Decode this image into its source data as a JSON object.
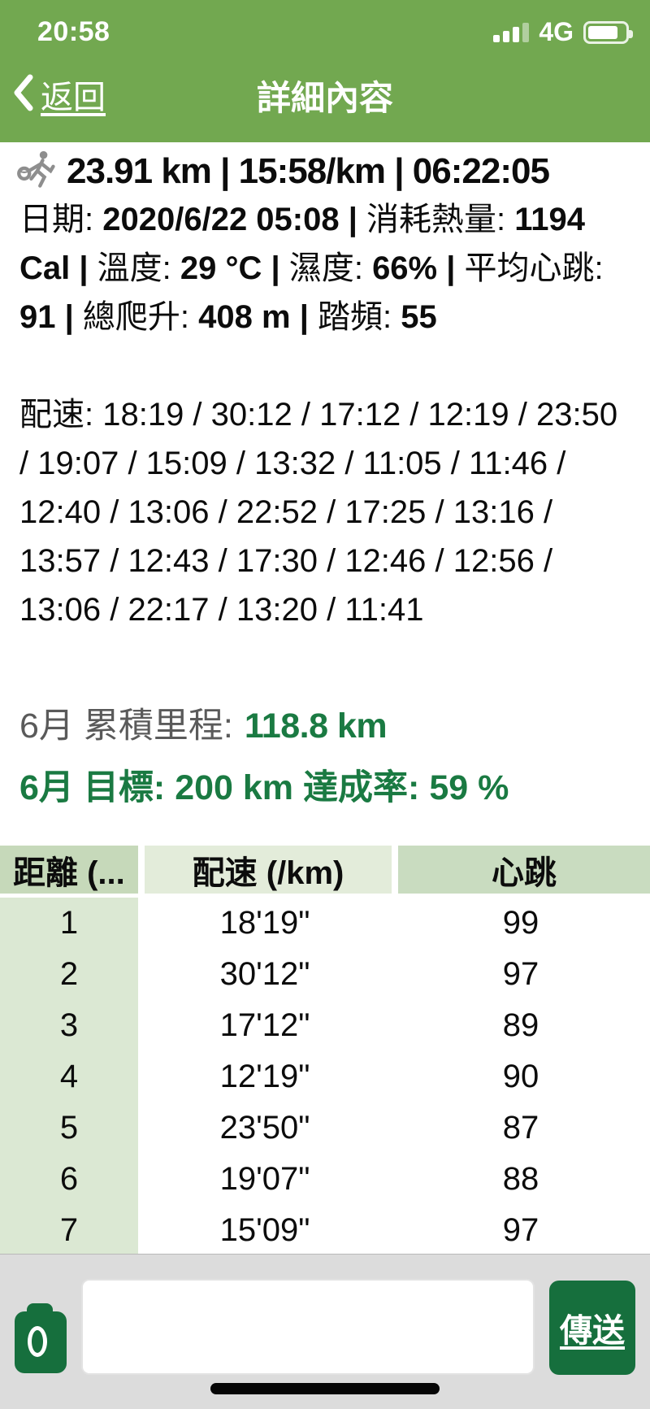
{
  "colors": {
    "header_green": "#72a850",
    "accent_green": "#1a7a42",
    "button_green": "#166f3d",
    "table_col1_body": "#dbe8d3"
  },
  "status_bar": {
    "time": "20:58",
    "network": "4G",
    "signal_icon": "signal-bars-3-of-4",
    "battery_icon": "battery-75"
  },
  "nav": {
    "back_label": "返回",
    "title": "詳細內容"
  },
  "summary": {
    "icon": "runner-icon",
    "text": "23.91 km | 15:58/km | 06:22:05"
  },
  "details": {
    "segments": [
      {
        "text": "日期: ",
        "bold": false
      },
      {
        "text": "2020/6/22 05:08",
        "bold": true
      },
      {
        "text": " | ",
        "bold": true
      },
      {
        "text": "消耗熱量: ",
        "bold": false
      },
      {
        "text": "1194 Cal",
        "bold": true
      },
      {
        "text": " | ",
        "bold": true
      },
      {
        "text": "溫度: ",
        "bold": false
      },
      {
        "text": "29 °C",
        "bold": true
      },
      {
        "text": " | ",
        "bold": true
      },
      {
        "text": "濕度: ",
        "bold": false
      },
      {
        "text": "66%",
        "bold": true
      },
      {
        "text": " | ",
        "bold": true
      },
      {
        "text": "平均心跳: ",
        "bold": false
      },
      {
        "text": "91",
        "bold": true
      },
      {
        "text": " | ",
        "bold": true
      },
      {
        "text": "總爬升: ",
        "bold": false
      },
      {
        "text": "408 m",
        "bold": true
      },
      {
        "text": " | ",
        "bold": true
      },
      {
        "text": "踏頻: ",
        "bold": false
      },
      {
        "text": "55",
        "bold": true
      }
    ]
  },
  "pace": {
    "label": "配速:",
    "splits": [
      "18:19",
      "30:12",
      "17:12",
      "12:19",
      "23:50",
      "19:07",
      "15:09",
      "13:32",
      "11:05",
      "11:46",
      "12:40",
      "13:06",
      "22:52",
      "17:25",
      "13:16",
      "13:57",
      "12:43",
      "17:30",
      "12:46",
      "12:56",
      "13:06",
      "22:17",
      "13:20",
      "11:41"
    ]
  },
  "monthly": {
    "label": "6月 累積里程:",
    "value": "118.8 km"
  },
  "goal": {
    "label": "6月 目標:",
    "value": "200 km",
    "rate_label": "達成率:",
    "rate_value": "59 %"
  },
  "table": {
    "headers": [
      "距離 (...",
      "配速 (/km)",
      "心跳"
    ],
    "rows": [
      {
        "km": "1",
        "pace": "18'19\"",
        "hr": "99"
      },
      {
        "km": "2",
        "pace": "30'12\"",
        "hr": "97"
      },
      {
        "km": "3",
        "pace": "17'12\"",
        "hr": "89"
      },
      {
        "km": "4",
        "pace": "12'19\"",
        "hr": "90"
      },
      {
        "km": "5",
        "pace": "23'50\"",
        "hr": "87"
      },
      {
        "km": "6",
        "pace": "19'07\"",
        "hr": "88"
      },
      {
        "km": "7",
        "pace": "15'09\"",
        "hr": "97"
      }
    ]
  },
  "composer": {
    "input_value": "",
    "send_label": "傳送",
    "camera_icon": "camera-icon"
  }
}
